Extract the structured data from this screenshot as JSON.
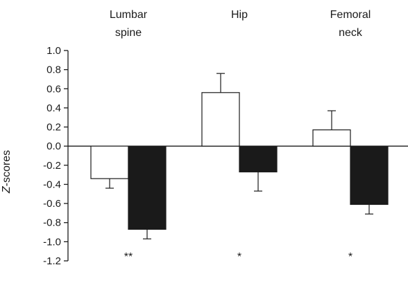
{
  "chart_data": {
    "type": "bar",
    "ylabel_italic": "Z",
    "ylabel_rest": "-scores",
    "ylim": [
      -1.2,
      1.0
    ],
    "yticks": [
      1.0,
      0.8,
      0.6,
      0.4,
      0.2,
      0.0,
      -0.2,
      -0.4,
      -0.6,
      -0.8,
      -1.0,
      -1.2
    ],
    "ytick_labels": [
      "1.0",
      "0.8",
      "0.6",
      "0.4",
      "0.2",
      "0.0",
      "-0.2",
      "-0.4",
      "-0.6",
      "-0.8",
      "-1.0",
      "-1.2"
    ],
    "categories": [
      {
        "line1": "Lumbar",
        "line2": "spine",
        "significance": "**"
      },
      {
        "line1": "Hip",
        "line2": "",
        "significance": "*"
      },
      {
        "line1": "Femoral",
        "line2": "neck",
        "significance": "*"
      }
    ],
    "series": [
      {
        "fill": "#ffffff",
        "values": [
          -0.34,
          0.56,
          0.17
        ],
        "errors": [
          0.1,
          0.2,
          0.2
        ]
      },
      {
        "fill": "#1a1a1a",
        "values": [
          -0.87,
          -0.27,
          -0.61
        ],
        "errors": [
          0.1,
          0.2,
          0.1
        ]
      }
    ],
    "grid": false,
    "legend": "none"
  }
}
